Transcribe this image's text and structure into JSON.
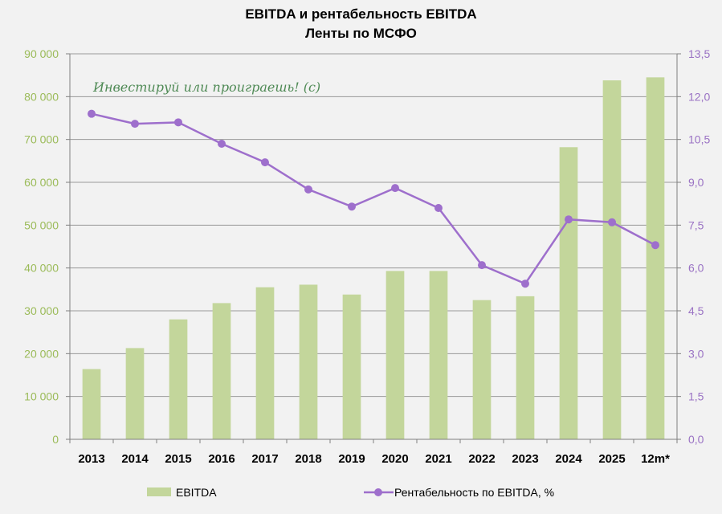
{
  "title_line1": "EBITDA и рентабельность EBITDA",
  "title_line2": "Ленты по МСФО",
  "watermark": "Инвестируй или проиграешь! (с)",
  "colors": {
    "bar": "#c3d69b",
    "line": "#9e6fcc",
    "left_axis": "#9bbb59",
    "right_axis": "#9a72c4",
    "grid": "#999999"
  },
  "chart_data": {
    "type": "bar",
    "categories": [
      "2013",
      "2014",
      "2015",
      "2016",
      "2017",
      "2018",
      "2019",
      "2020",
      "2021",
      "2022",
      "2023",
      "2024",
      "2025",
      "12m*"
    ],
    "series": [
      {
        "name": "EBITDA",
        "type": "bar",
        "axis": "left",
        "values": [
          16400,
          21300,
          28000,
          31800,
          35500,
          36100,
          33800,
          39300,
          39300,
          32500,
          33400,
          68200,
          83800,
          84500
        ]
      },
      {
        "name": "Рентабельность по EBITDA, %",
        "type": "line",
        "axis": "right",
        "values": [
          11.4,
          11.05,
          11.1,
          10.35,
          9.7,
          8.75,
          8.15,
          8.8,
          8.1,
          6.1,
          5.45,
          7.7,
          7.6,
          6.8
        ]
      }
    ],
    "left_axis": {
      "min": 0,
      "max": 90000,
      "step": 10000,
      "tick_labels": [
        "0",
        "10 000",
        "20 000",
        "30 000",
        "40 000",
        "50 000",
        "60 000",
        "70 000",
        "80 000",
        "90 000"
      ]
    },
    "right_axis": {
      "min": 0,
      "max": 13.5,
      "step": 1.5,
      "tick_labels": [
        "0,0",
        "1,5",
        "3,0",
        "4,5",
        "6,0",
        "7,5",
        "9,0",
        "10,5",
        "12,0",
        "13,5"
      ]
    },
    "grid": true,
    "legend_position": "bottom"
  }
}
